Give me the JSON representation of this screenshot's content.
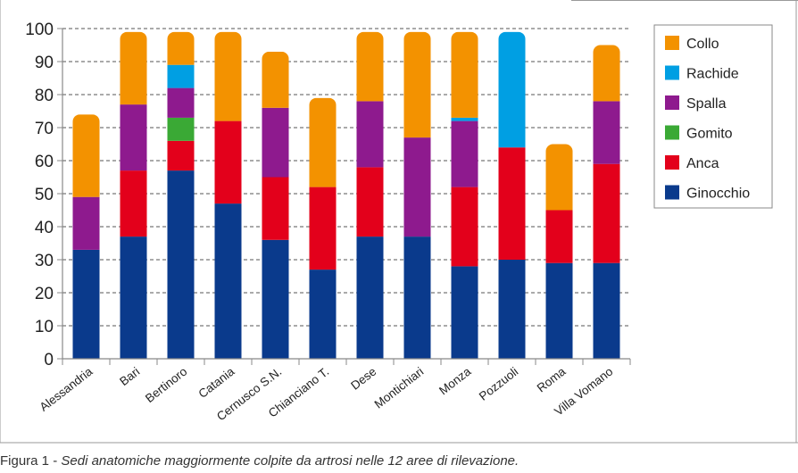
{
  "caption": {
    "label": "Figura 1",
    "separator": " - ",
    "text": "Sedi anatomiche maggiormente colpite da artrosi nelle 12 aree di rilevazione."
  },
  "colors": {
    "frame": "#9a9a9a",
    "grid": "#555555",
    "axis": "#888888"
  },
  "chart_data": {
    "type": "bar",
    "stacked": true,
    "title": "",
    "xlabel": "",
    "ylabel": "",
    "ylim": [
      0,
      100
    ],
    "yticks": [
      0,
      10,
      20,
      30,
      40,
      50,
      60,
      70,
      80,
      90,
      100
    ],
    "grid": "horizontal dashed",
    "legend_position": "right",
    "categories": [
      "Alessandria",
      "Bari",
      "Bertinoro",
      "Catania",
      "Cernusco S.N.",
      "Chianciano T.",
      "Dese",
      "Montichiari",
      "Monza",
      "Pozzuoli",
      "Roma",
      "Villa Vomano"
    ],
    "series": [
      {
        "name": "Ginocchio",
        "color": "#0a3a8c",
        "values": [
          33,
          37,
          57,
          47,
          36,
          27,
          37,
          37,
          28,
          30,
          29,
          29
        ]
      },
      {
        "name": "Anca",
        "color": "#e3001b",
        "values": [
          0,
          20,
          9,
          25,
          19,
          25,
          21,
          0,
          24,
          34,
          16,
          30
        ]
      },
      {
        "name": "Gomito",
        "color": "#3aa935",
        "values": [
          0,
          0,
          7,
          0,
          0,
          0,
          0,
          0,
          0,
          0,
          0,
          0
        ]
      },
      {
        "name": "Spalla",
        "color": "#8e1a8e",
        "values": [
          16,
          20,
          9,
          0,
          21,
          0,
          20,
          30,
          20,
          0,
          0,
          19
        ]
      },
      {
        "name": "Rachide",
        "color": "#009fe3",
        "values": [
          0,
          0,
          7,
          0,
          0,
          0,
          0,
          0,
          1,
          35,
          0,
          0
        ]
      },
      {
        "name": "Collo",
        "color": "#f39200",
        "values": [
          25,
          22,
          10,
          27,
          17,
          27,
          21,
          32,
          26,
          0,
          20,
          17
        ]
      }
    ],
    "legend_order": [
      "Collo",
      "Rachide",
      "Spalla",
      "Gomito",
      "Anca",
      "Ginocchio"
    ]
  }
}
